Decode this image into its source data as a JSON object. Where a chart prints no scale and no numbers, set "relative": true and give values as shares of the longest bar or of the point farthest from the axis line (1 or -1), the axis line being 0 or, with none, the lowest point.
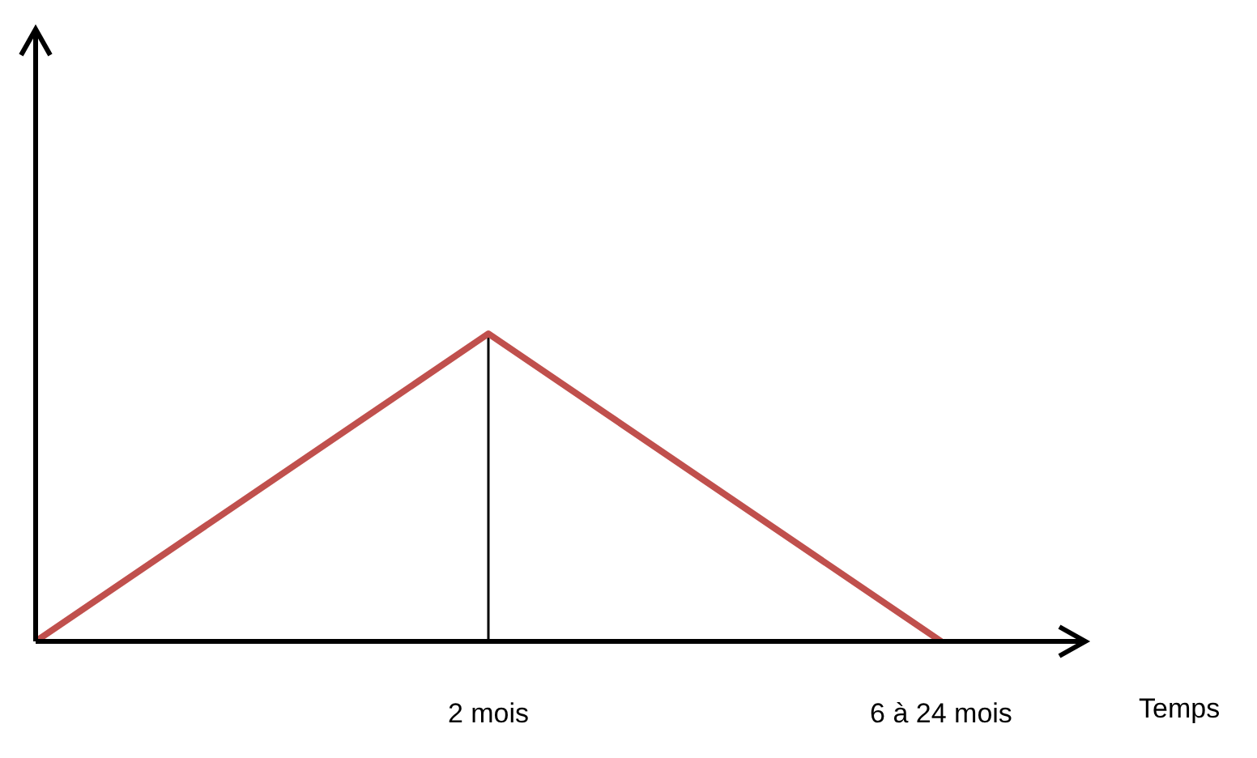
{
  "chart_data": {
    "type": "line",
    "relative": true,
    "xlabel": "Temps",
    "categories": [
      null,
      "2 mois",
      "6 à 24 mois"
    ],
    "series": [
      {
        "color": "#c0504d",
        "values": [
          0,
          1,
          0
        ]
      }
    ],
    "ref_lines": [
      {
        "axis": "x",
        "value": "2 mois",
        "color": "#000000"
      }
    ],
    "marker": "none"
  }
}
